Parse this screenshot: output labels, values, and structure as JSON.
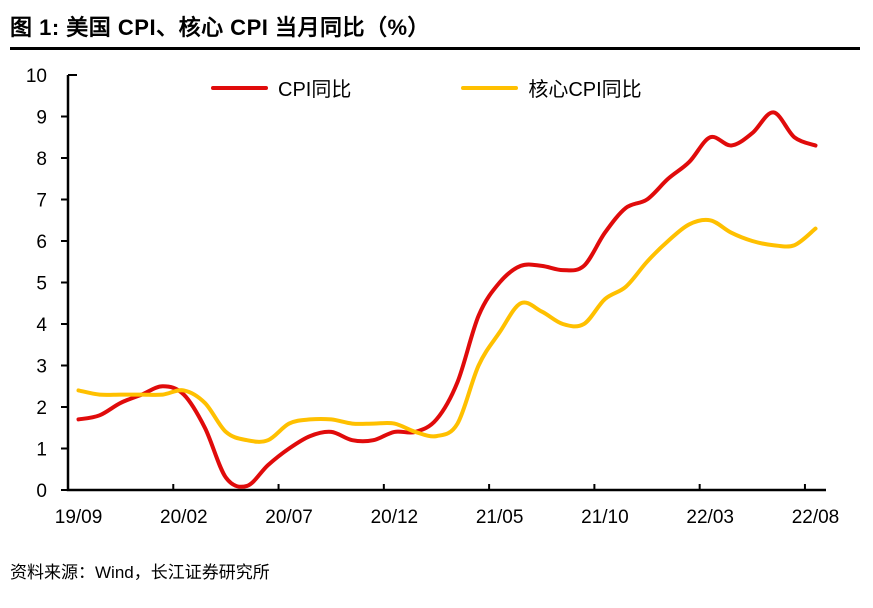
{
  "page": {
    "title": "图 1: 美国 CPI、核心 CPI 当月同比（%）",
    "source": "资料来源：Wind，长江证券研究所"
  },
  "legend": {
    "items": [
      {
        "label": "CPI同比",
        "color": "#e00b0b"
      },
      {
        "label": "核心CPI同比",
        "color": "#ffc000"
      }
    ]
  },
  "chart_data": {
    "type": "line",
    "title": "美国 CPI、核心 CPI 当月同比（%）",
    "xlabel": "",
    "ylabel": "",
    "ylim": [
      0,
      10
    ],
    "y_ticks": [
      0,
      1,
      2,
      3,
      4,
      5,
      6,
      7,
      8,
      9,
      10
    ],
    "grid": false,
    "legend_position": "top",
    "axis_color": "#000000",
    "x": [
      "19/09",
      "19/10",
      "19/11",
      "19/12",
      "20/01",
      "20/02",
      "20/03",
      "20/04",
      "20/05",
      "20/06",
      "20/07",
      "20/08",
      "20/09",
      "20/10",
      "20/11",
      "20/12",
      "21/01",
      "21/02",
      "21/03",
      "21/04",
      "21/05",
      "21/06",
      "21/07",
      "21/08",
      "21/09",
      "21/10",
      "21/11",
      "21/12",
      "22/01",
      "22/02",
      "22/03",
      "22/04",
      "22/05",
      "22/06",
      "22/07",
      "22/08"
    ],
    "x_tick_indices": [
      0,
      5,
      10,
      15,
      20,
      25,
      30,
      35
    ],
    "x_tick_labels": [
      "19/09",
      "20/02",
      "20/07",
      "20/12",
      "21/05",
      "21/10",
      "22/03",
      "22/08"
    ],
    "series": [
      {
        "name": "CPI同比",
        "color": "#e00b0b",
        "values": [
          1.7,
          1.8,
          2.1,
          2.3,
          2.5,
          2.3,
          1.5,
          0.3,
          0.1,
          0.6,
          1.0,
          1.3,
          1.4,
          1.2,
          1.2,
          1.4,
          1.4,
          1.7,
          2.6,
          4.2,
          5.0,
          5.4,
          5.4,
          5.3,
          5.4,
          6.2,
          6.8,
          7.0,
          7.5,
          7.9,
          8.5,
          8.3,
          8.6,
          9.1,
          8.5,
          8.3
        ]
      },
      {
        "name": "核心CPI同比",
        "color": "#ffc000",
        "values": [
          2.4,
          2.3,
          2.3,
          2.3,
          2.3,
          2.4,
          2.1,
          1.4,
          1.2,
          1.2,
          1.6,
          1.7,
          1.7,
          1.6,
          1.6,
          1.6,
          1.4,
          1.3,
          1.6,
          3.0,
          3.8,
          4.5,
          4.3,
          4.0,
          4.0,
          4.6,
          4.9,
          5.5,
          6.0,
          6.4,
          6.5,
          6.2,
          6.0,
          5.9,
          5.9,
          6.3
        ]
      }
    ]
  }
}
